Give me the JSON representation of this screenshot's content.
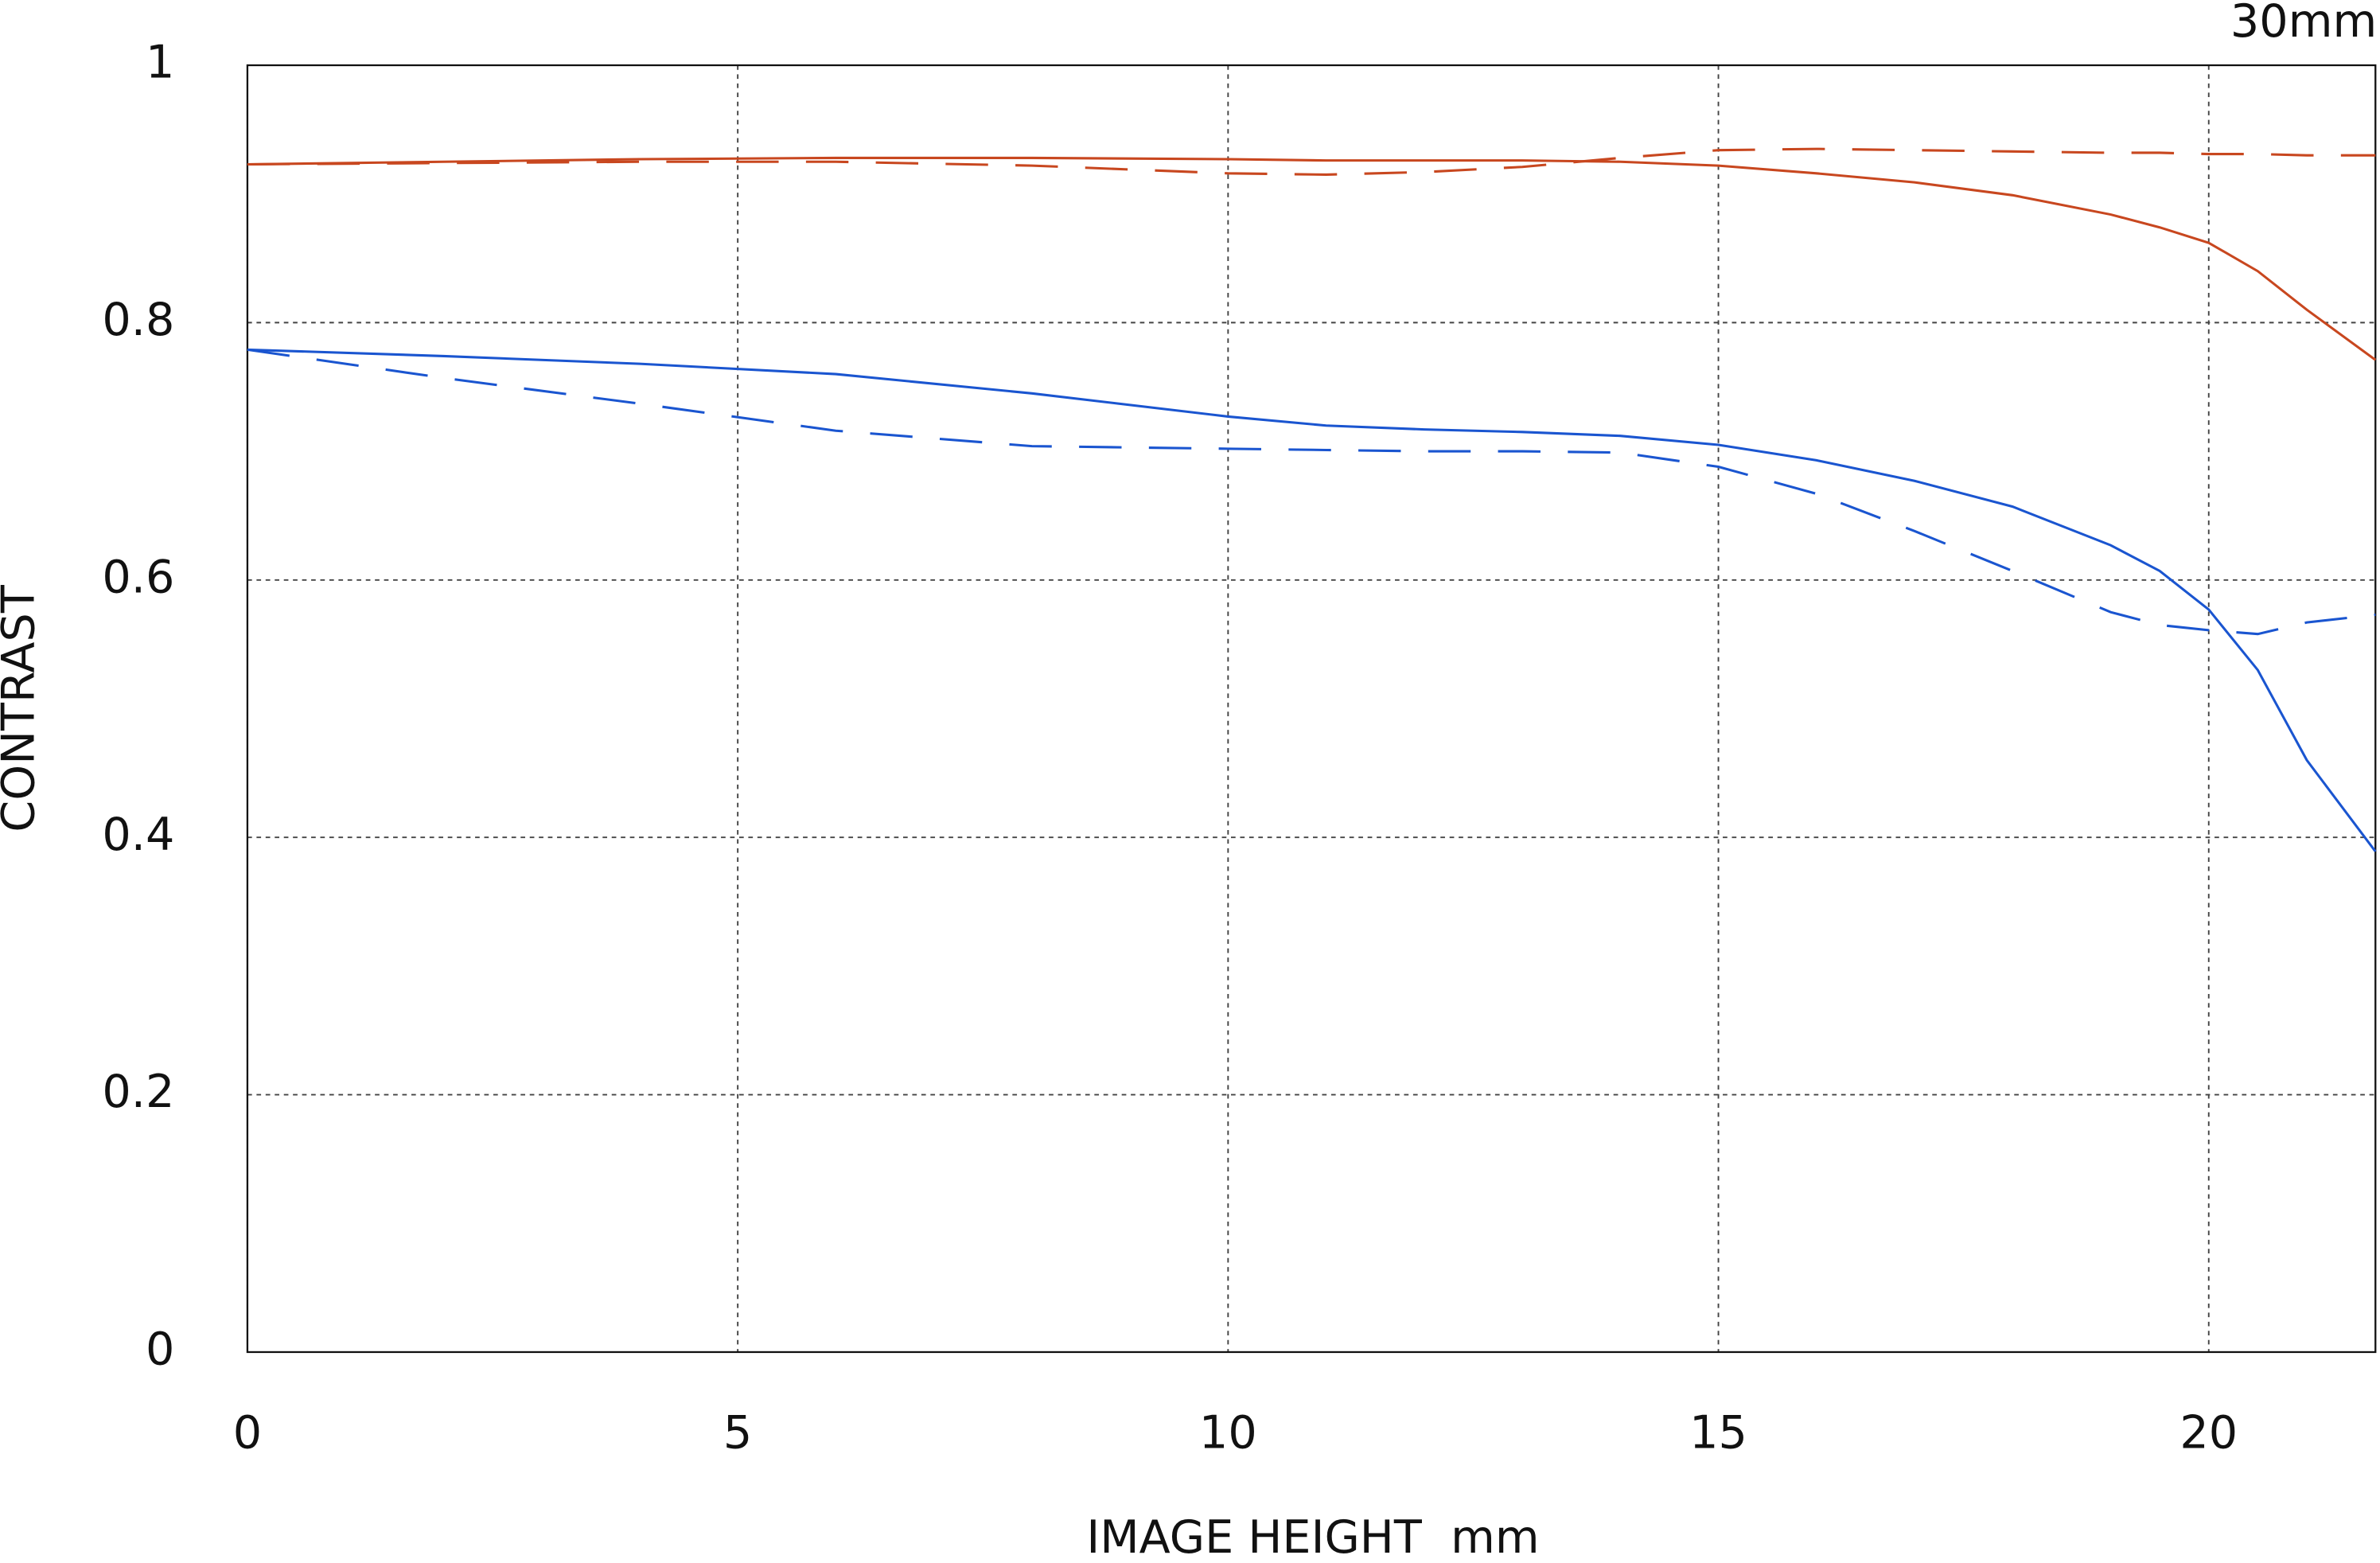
{
  "chart_data": {
    "type": "line",
    "annotation": "30mm",
    "x_label": "IMAGE HEIGHT  mm",
    "y_label": "CONTRAST",
    "x": [
      0,
      2,
      4,
      6,
      8,
      10,
      11,
      12,
      13,
      14,
      15,
      16,
      17,
      18,
      19,
      19.5,
      20,
      20.5,
      21,
      21.7
    ],
    "series": [
      {
        "color": "#c8471f",
        "dashed": false,
        "values": [
          0.923,
          0.925,
          0.927,
          0.928,
          0.928,
          0.927,
          0.926,
          0.926,
          0.926,
          0.925,
          0.922,
          0.916,
          0.909,
          0.899,
          0.884,
          0.874,
          0.862,
          0.84,
          0.81,
          0.771
        ]
      },
      {
        "color": "#c8471f",
        "dashed": true,
        "values": [
          0.923,
          0.924,
          0.925,
          0.925,
          0.922,
          0.916,
          0.915,
          0.917,
          0.921,
          0.928,
          0.934,
          0.935,
          0.934,
          0.933,
          0.932,
          0.932,
          0.931,
          0.931,
          0.93,
          0.93
        ]
      },
      {
        "color": "#1a55d0",
        "dashed": false,
        "values": [
          0.779,
          0.774,
          0.768,
          0.76,
          0.745,
          0.727,
          0.72,
          0.717,
          0.715,
          0.712,
          0.705,
          0.693,
          0.677,
          0.657,
          0.627,
          0.607,
          0.577,
          0.53,
          0.46,
          0.389
        ]
      },
      {
        "color": "#1a55d0",
        "dashed": true,
        "values": [
          0.779,
          0.757,
          0.737,
          0.716,
          0.704,
          0.702,
          0.701,
          0.7,
          0.7,
          0.699,
          0.688,
          0.667,
          0.638,
          0.607,
          0.575,
          0.565,
          0.561,
          0.558,
          0.567,
          0.573
        ]
      }
    ],
    "xlim": [
      0,
      21.7
    ],
    "xticks": [
      0,
      5,
      10,
      15,
      20
    ],
    "ylim": [
      0,
      1
    ],
    "yticks": [
      0,
      0.2,
      0.4,
      0.6,
      0.8,
      1
    ],
    "grid": true
  }
}
